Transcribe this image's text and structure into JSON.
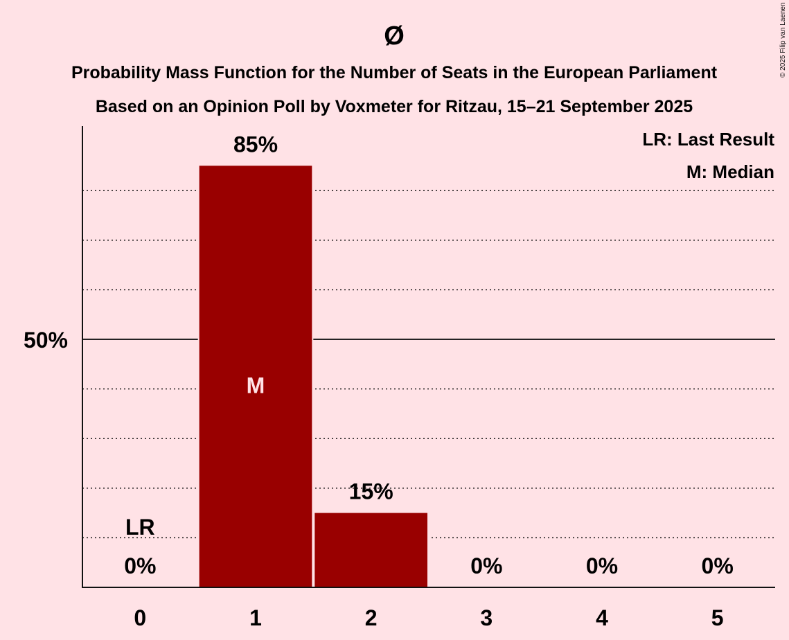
{
  "copyright": "© 2025 Filip van Laenen",
  "legend": {
    "last_result": "LR: Last Result",
    "median": "M: Median"
  },
  "chart_data": {
    "type": "bar",
    "title": "Ø",
    "subtitle": [
      "Probability Mass Function for the Number of Seats in the European Parliament",
      "Based on an Opinion Poll by Voxmeter for Ritzau, 15–21 September 2025"
    ],
    "categories": [
      "0",
      "1",
      "2",
      "3",
      "4",
      "5"
    ],
    "values": [
      0,
      85,
      15,
      0,
      0,
      0
    ],
    "value_labels": [
      "0%",
      "85%",
      "15%",
      "0%",
      "0%",
      "0%"
    ],
    "ylim": [
      0,
      93
    ],
    "ytick_label": "50%",
    "ytick_value": 50,
    "gridlines": [
      10,
      20,
      30,
      40,
      60,
      70,
      80
    ],
    "last_result_index": 0,
    "last_result_marker": "LR",
    "median_index": 1,
    "median_marker": "M",
    "bar_color": "#990000"
  }
}
